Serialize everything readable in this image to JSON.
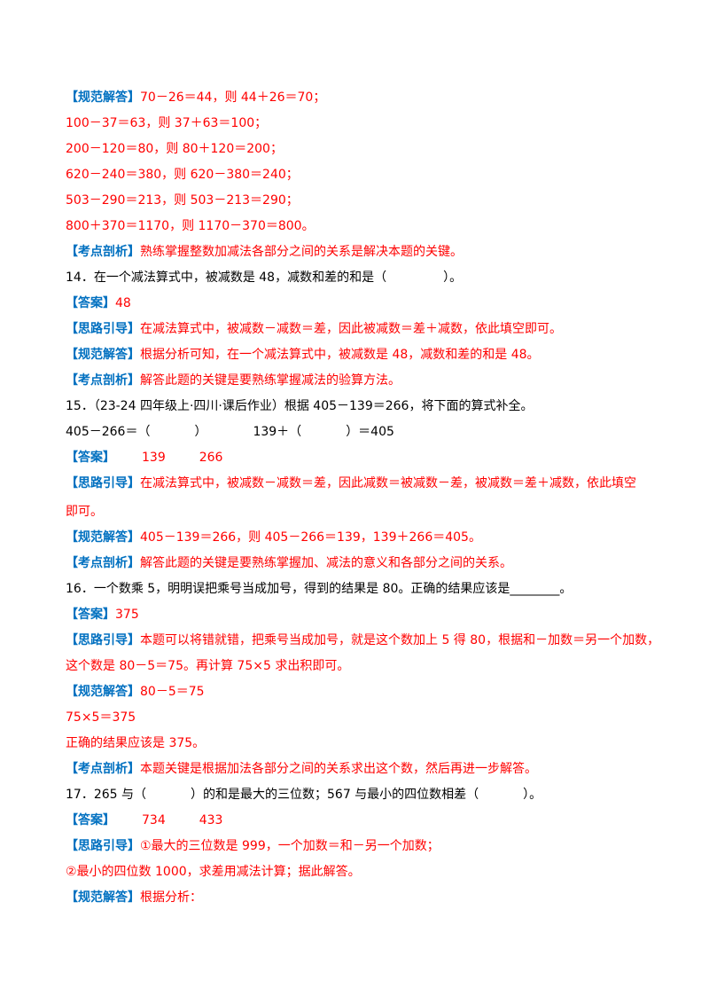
{
  "colors": {
    "tag": "#0070c0",
    "answer": "#ff0000",
    "text": "#000000"
  },
  "tags": {
    "answer": "【答案】",
    "guide": "【思路引导】",
    "solution": "【规范解答】",
    "analysis": "【考点剖析】"
  },
  "q13": {
    "solution_lines": [
      "70－26＝44，则 44＋26＝70；",
      "100－37＝63，则 37＋63＝100；",
      "200－120＝80，则 80＋120＝200；",
      "620－240＝380，则 620－380＝240；",
      "503－290＝213，则 503－213＝290；",
      "800＋370＝1170，则 1170－370＝800。"
    ],
    "analysis": "熟练掌握整数加减法各部分之间的关系是解决本题的关键。"
  },
  "q14": {
    "stem_a": "14．在一个减法算式中，被减数是 48，减数和差的和是（",
    "stem_b": "）。",
    "answer": "48",
    "guide": "在减法算式中，被减数－减数＝差，因此被减数＝差＋减数，依此填空即可。",
    "solution": "根据分析可知，在一个减法算式中，被减数是 48，减数和差的和是 48。",
    "analysis": "解答此题的关键是要熟练掌握减法的验算方法。"
  },
  "q15": {
    "stem": "15．（23-24 四年级上·四川·课后作业）根据 405－139＝266，将下面的算式补全。",
    "blank1_a": "405－266＝（",
    "blank1_b": "）",
    "blank2_a": "139＋（",
    "blank2_b": "）＝405",
    "answer1": "139",
    "answer2": "266",
    "guide_line1": "在减法算式中，被减数－减数＝差，因此减数＝被减数－差，被减数＝差＋减数，依此填空",
    "guide_line2": "即可。",
    "solution": "405－139＝266，则 405－266＝139，139＋266＝405。",
    "analysis": "解答此题的关键是要熟练掌握加、减法的意义和各部分之间的关系。"
  },
  "q16": {
    "stem": "16．一个数乘 5，明明误把乘号当成加号，得到的结果是 80。正确的结果应该是________。",
    "answer": "375",
    "guide_line1": "本题可以将错就错，把乘号当成加号，就是这个数加上 5 得 80，根据和－加数＝另一个加数，",
    "guide_line2": "这个数是 80－5＝75。再计算 75×5 求出积即可。",
    "solution_line1": "80－5＝75",
    "solution_line2": "75×5＝375",
    "solution_line3": "正确的结果应该是 375。",
    "analysis": "本题关键是根据加法各部分之间的关系求出这个数，然后再进一步解答。"
  },
  "q17": {
    "stem_a": "17．265 与（",
    "stem_b": "）的和是最大的三位数；567 与最小的四位数相差（",
    "stem_c": "）。",
    "answer1": "734",
    "answer2": "433",
    "guide_line1": "①最大的三位数是 999，一个加数＝和－另一个加数；",
    "guide_line2": "②最小的四位数 1000，求差用减法计算；据此解答。",
    "solution": "根据分析："
  }
}
